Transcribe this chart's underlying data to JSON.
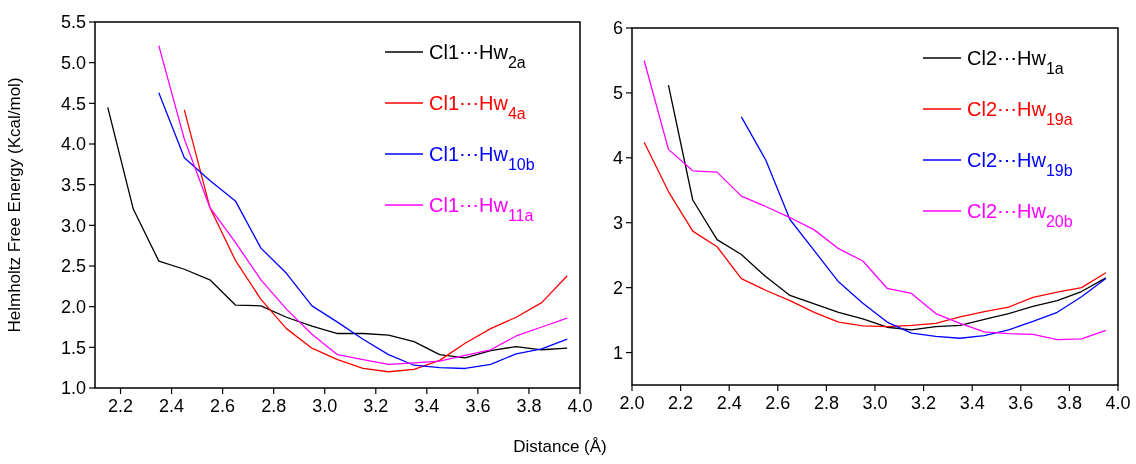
{
  "chart_data": [
    {
      "type": "line",
      "xlabel": "Distance (Å)",
      "ylabel": "Helmholtz Free Energy (Kcal/mol)",
      "xlim": [
        2.1,
        4.0
      ],
      "ylim": [
        1.0,
        5.5
      ],
      "xticks": [
        2.2,
        2.4,
        2.6,
        2.8,
        {
          "value": 3,
          "label": "3.0"
        },
        3.2,
        3.4,
        3.6,
        3.8,
        {
          "value": 4,
          "label": "4.0"
        }
      ],
      "yticks": [
        {
          "value": 1,
          "label": "1.0"
        },
        1.5,
        {
          "value": 2,
          "label": "2.0"
        },
        2.5,
        {
          "value": 3,
          "label": "3.0"
        },
        3.5,
        {
          "value": 4,
          "label": "4.0"
        },
        4.5,
        {
          "value": 5,
          "label": "5.0"
        },
        5.5
      ],
      "legend": "top right",
      "grid": false,
      "line_style": "solid",
      "series": [
        {
          "name": "Cl1⋯Hw$_{2a}$",
          "color": "#000000",
          "x": [
            2.15,
            2.25,
            2.35,
            2.45,
            2.55,
            2.65,
            2.75,
            2.85,
            2.95,
            3.05,
            3.15,
            3.25,
            3.35,
            3.45,
            3.55,
            3.65,
            3.75,
            3.85,
            3.95
          ],
          "values": [
            4.45,
            3.2,
            2.56,
            2.46,
            2.33,
            2.02,
            2.01,
            1.87,
            1.76,
            1.67,
            1.67,
            1.65,
            1.57,
            1.41,
            1.37,
            1.46,
            1.51,
            1.47,
            1.49
          ]
        },
        {
          "name": "Cl1⋯Hw$_{4a}$",
          "color": "#ff0000",
          "x": [
            2.45,
            2.55,
            2.65,
            2.75,
            2.85,
            2.95,
            3.05,
            3.15,
            3.25,
            3.35,
            3.45,
            3.55,
            3.65,
            3.75,
            3.85,
            3.95
          ],
          "values": [
            4.42,
            3.22,
            2.57,
            2.09,
            1.73,
            1.49,
            1.35,
            1.24,
            1.2,
            1.23,
            1.34,
            1.55,
            1.73,
            1.87,
            2.05,
            2.38
          ]
        },
        {
          "name": "Cl1⋯Hw$_{10b}$",
          "color": "#0000ff",
          "x": [
            2.35,
            2.45,
            2.55,
            2.65,
            2.75,
            2.85,
            2.95,
            3.05,
            3.15,
            3.25,
            3.35,
            3.45,
            3.55,
            3.65,
            3.75,
            3.85,
            3.95
          ],
          "values": [
            4.63,
            3.83,
            3.55,
            3.3,
            2.72,
            2.41,
            2.01,
            1.81,
            1.6,
            1.41,
            1.28,
            1.25,
            1.24,
            1.29,
            1.42,
            1.48,
            1.6
          ]
        },
        {
          "name": "Cl1⋯Hw$_{11a}$",
          "color": "#ff00ff",
          "x": [
            2.35,
            2.45,
            2.55,
            2.65,
            2.75,
            2.85,
            2.95,
            3.05,
            3.15,
            3.25,
            3.35,
            3.45,
            3.55,
            3.65,
            3.75,
            3.85,
            3.95
          ],
          "values": [
            5.21,
            4.06,
            3.22,
            2.79,
            2.33,
            1.97,
            1.66,
            1.41,
            1.35,
            1.29,
            1.31,
            1.33,
            1.4,
            1.47,
            1.64,
            1.75,
            1.86
          ]
        }
      ]
    },
    {
      "type": "line",
      "xlim": [
        2.0,
        4.0
      ],
      "ylim": [
        0.5,
        6
      ],
      "xticks": [
        {
          "value": 2,
          "label": "2.0"
        },
        2.2,
        2.4,
        2.6,
        2.8,
        {
          "value": 3,
          "label": "3.0"
        },
        3.2,
        3.4,
        3.6,
        3.8,
        {
          "value": 4,
          "label": "4.0"
        }
      ],
      "yticks": [
        1,
        2,
        3,
        4,
        5,
        6
      ],
      "legend": "top right",
      "grid": false,
      "line_style": "solid",
      "series": [
        {
          "name": "Cl2⋯Hw$_{1a}$",
          "color": "#000000",
          "x": [
            2.15,
            2.25,
            2.35,
            2.45,
            2.55,
            2.65,
            2.75,
            2.85,
            2.95,
            3.05,
            3.15,
            3.25,
            3.35,
            3.45,
            3.55,
            3.65,
            3.75,
            3.85,
            3.95
          ],
          "values": [
            5.12,
            3.35,
            2.74,
            2.51,
            2.17,
            1.88,
            1.75,
            1.62,
            1.52,
            1.39,
            1.35,
            1.4,
            1.42,
            1.51,
            1.6,
            1.71,
            1.8,
            1.94,
            2.15
          ]
        },
        {
          "name": "Cl2⋯Hw$_{19a}$",
          "color": "#ff0000",
          "x": [
            2.05,
            2.15,
            2.25,
            2.35,
            2.45,
            2.55,
            2.65,
            2.75,
            2.85,
            2.95,
            3.05,
            3.15,
            3.25,
            3.35,
            3.45,
            3.55,
            3.65,
            3.75,
            3.85,
            3.95
          ],
          "values": [
            4.24,
            3.48,
            2.87,
            2.63,
            2.14,
            1.96,
            1.8,
            1.62,
            1.47,
            1.41,
            1.4,
            1.42,
            1.45,
            1.55,
            1.63,
            1.7,
            1.85,
            1.93,
            2.0,
            2.23
          ]
        },
        {
          "name": "Cl2⋯Hw$_{19b}$",
          "color": "#0000ff",
          "x": [
            2.45,
            2.55,
            2.65,
            2.75,
            2.85,
            2.95,
            3.05,
            3.15,
            3.25,
            3.35,
            3.45,
            3.55,
            3.65,
            3.75,
            3.85,
            3.95
          ],
          "values": [
            4.63,
            3.97,
            3.05,
            2.57,
            2.09,
            1.76,
            1.47,
            1.3,
            1.25,
            1.22,
            1.26,
            1.35,
            1.48,
            1.62,
            1.86,
            2.14
          ]
        },
        {
          "name": "Cl2⋯Hw$_{20b}$",
          "color": "#ff00ff",
          "x": [
            2.05,
            2.15,
            2.25,
            2.35,
            2.45,
            2.55,
            2.65,
            2.75,
            2.85,
            2.95,
            3.05,
            3.15,
            3.25,
            3.35,
            3.45,
            3.55,
            3.65,
            3.75,
            3.85,
            3.95
          ],
          "values": [
            5.5,
            4.13,
            3.8,
            3.78,
            3.41,
            3.25,
            3.08,
            2.89,
            2.6,
            2.41,
            1.99,
            1.91,
            1.6,
            1.45,
            1.32,
            1.29,
            1.28,
            1.2,
            1.21,
            1.34
          ]
        }
      ]
    }
  ]
}
